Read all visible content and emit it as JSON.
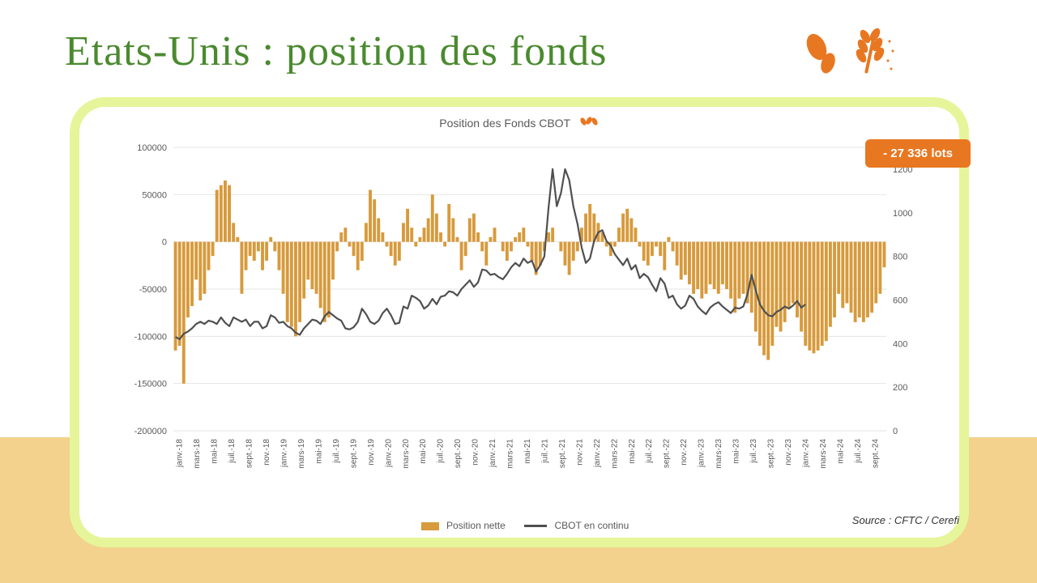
{
  "title": "Etats-Unis : position des fonds",
  "chart": {
    "type": "bar+line",
    "title": "Position des Fonds CBOT",
    "badge": "- 27 336 lots",
    "source": "Source : CFTC / Cerefi",
    "left_axis": {
      "min": -200000,
      "max": 100000,
      "ticks": [
        -200000,
        -150000,
        -100000,
        -50000,
        0,
        50000,
        100000
      ],
      "title": ""
    },
    "right_axis": {
      "min": 0,
      "max": 1300,
      "ticks": [
        0,
        200,
        400,
        600,
        800,
        1000,
        1200
      ],
      "title": ""
    },
    "x_labels": [
      "janv.-18",
      "mars-18",
      "mai-18",
      "juil.-18",
      "sept.-18",
      "nov.-18",
      "janv.-19",
      "mars-19",
      "mai-19",
      "juil.-19",
      "sept.-19",
      "nov.-19",
      "janv.-20",
      "mars-20",
      "mai-20",
      "juil.-20",
      "sept.-20",
      "nov.-20",
      "janv.-21",
      "mars-21",
      "mai-21",
      "juil.-21",
      "sept.-21",
      "nov.-21",
      "janv.-22",
      "mars-22",
      "mai-22",
      "juil.-22",
      "sept.-22",
      "nov.-22",
      "janv.-23",
      "mars-23",
      "mai-23",
      "juil.-23",
      "sept.-23",
      "nov.-23",
      "janv.-24",
      "mars-24",
      "mai-24",
      "juil.-24",
      "sept.-24"
    ],
    "legend": {
      "bar": "Position nette",
      "line": "CBOT en continu"
    },
    "colors": {
      "bar": "#d79a3c",
      "line": "#505050",
      "grid": "#e4e4e4",
      "axis_text": "#595959",
      "badge_bg": "#e87722",
      "badge_text": "#ffffff",
      "card_border": "#e6f59a",
      "bg_band": "#f2d28c",
      "title": "#4a8a2f"
    },
    "line_width": 2.2,
    "bars": [
      -115000,
      -110000,
      -150000,
      -80000,
      -68000,
      -40000,
      -62000,
      -55000,
      -30000,
      -15000,
      55000,
      60000,
      65000,
      60000,
      20000,
      5000,
      -55000,
      -30000,
      -15000,
      -20000,
      -10000,
      -30000,
      -20000,
      5000,
      -10000,
      -30000,
      -55000,
      -85000,
      -90000,
      -100000,
      -85000,
      -60000,
      -40000,
      -50000,
      -55000,
      -70000,
      -85000,
      -80000,
      -40000,
      -10000,
      10000,
      15000,
      -5000,
      -15000,
      -30000,
      -20000,
      20000,
      55000,
      45000,
      25000,
      10000,
      -5000,
      -15000,
      -25000,
      -20000,
      20000,
      35000,
      15000,
      -5000,
      5000,
      15000,
      25000,
      50000,
      30000,
      10000,
      -5000,
      40000,
      25000,
      5000,
      -30000,
      -15000,
      25000,
      30000,
      10000,
      -10000,
      -25000,
      5000,
      15000,
      0,
      -10000,
      -20000,
      -10000,
      5000,
      10000,
      15000,
      -5000,
      -20000,
      -35000,
      -25000,
      -10000,
      10000,
      15000,
      0,
      -10000,
      -25000,
      -35000,
      -20000,
      -10000,
      15000,
      30000,
      40000,
      30000,
      20000,
      10000,
      -5000,
      -15000,
      -5000,
      15000,
      30000,
      35000,
      25000,
      15000,
      -5000,
      -20000,
      -25000,
      -15000,
      -5000,
      -15000,
      -30000,
      5000,
      -10000,
      -25000,
      -40000,
      -35000,
      -45000,
      -55000,
      -50000,
      -60000,
      -55000,
      -45000,
      -50000,
      -55000,
      -45000,
      -50000,
      -60000,
      -75000,
      -60000,
      -55000,
      -65000,
      -75000,
      -95000,
      -110000,
      -120000,
      -125000,
      -110000,
      -90000,
      -95000,
      -85000,
      -70000,
      -65000,
      -80000,
      -95000,
      -110000,
      -115000,
      -118000,
      -115000,
      -110000,
      -105000,
      -90000,
      -80000,
      -55000,
      -70000,
      -65000,
      -75000,
      -85000,
      -80000,
      -85000,
      -80000,
      -75000,
      -65000,
      -55000,
      -27000
    ],
    "line": [
      430,
      420,
      445,
      455,
      470,
      490,
      500,
      490,
      505,
      500,
      490,
      520,
      495,
      480,
      520,
      510,
      500,
      510,
      480,
      500,
      500,
      470,
      480,
      530,
      520,
      495,
      500,
      480,
      470,
      450,
      440,
      470,
      490,
      510,
      505,
      490,
      525,
      545,
      530,
      515,
      505,
      470,
      465,
      475,
      500,
      560,
      535,
      500,
      490,
      505,
      540,
      560,
      530,
      490,
      495,
      570,
      560,
      620,
      610,
      595,
      560,
      575,
      605,
      580,
      615,
      620,
      640,
      635,
      620,
      650,
      670,
      690,
      660,
      680,
      740,
      735,
      715,
      720,
      705,
      695,
      720,
      750,
      770,
      755,
      790,
      770,
      780,
      730,
      760,
      800,
      1020,
      1200,
      1030,
      1090,
      1200,
      1150,
      1030,
      950,
      840,
      770,
      790,
      870,
      910,
      920,
      870,
      850,
      810,
      785,
      760,
      790,
      740,
      760,
      700,
      720,
      705,
      670,
      640,
      700,
      675,
      610,
      620,
      580,
      560,
      575,
      620,
      605,
      570,
      550,
      535,
      565,
      580,
      590,
      570,
      555,
      540,
      565,
      560,
      570,
      625,
      715,
      645,
      580,
      550,
      530,
      525,
      545,
      555,
      570,
      560,
      575,
      595,
      565,
      580
    ]
  }
}
